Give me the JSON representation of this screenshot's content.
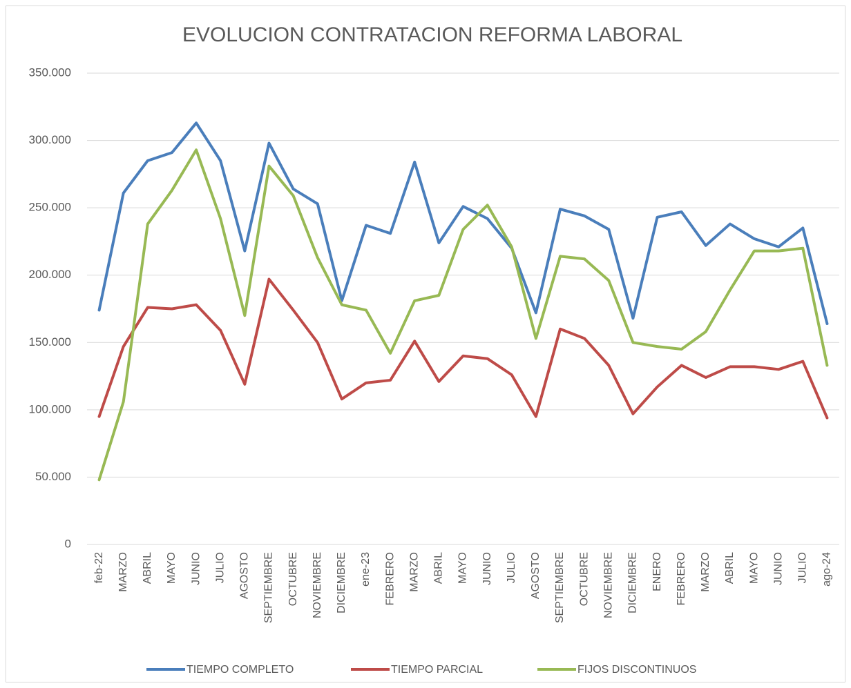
{
  "chart_data": {
    "type": "line",
    "title": "EVOLUCION CONTRATACION REFORMA LABORAL",
    "categories": [
      "feb-22",
      "MARZO",
      "ABRIL",
      "MAYO",
      "JUNIO",
      "JULIO",
      "AGOSTO",
      "SEPTIEMBRE",
      "OCTUBRE",
      "NOVIEMBRE",
      "DICIEMBRE",
      "ene-23",
      "FEBRERO",
      "MARZO",
      "ABRIL",
      "MAYO",
      "JUNIO",
      "JULIO",
      "AGOSTO",
      "SEPTIEMBRE",
      "OCTUBRE",
      "NOVIEMBRE",
      "DICIEMBRE",
      "ENERO",
      "FEBRERO",
      "MARZO",
      "ABRIL",
      "MAYO",
      "JUNIO",
      "JULIO",
      "ago-24"
    ],
    "series": [
      {
        "name": "TIEMPO COMPLETO",
        "color": "#4a7ebb",
        "values": [
          174000,
          261000,
          285000,
          291000,
          313000,
          285000,
          218000,
          298000,
          264000,
          253000,
          181000,
          237000,
          231000,
          284000,
          224000,
          251000,
          242000,
          220000,
          172000,
          249000,
          244000,
          234000,
          168000,
          243000,
          247000,
          222000,
          238000,
          227000,
          221000,
          235000,
          164000
        ]
      },
      {
        "name": "TIEMPO PARCIAL",
        "color": "#be4b48",
        "values": [
          95000,
          147000,
          176000,
          175000,
          178000,
          159000,
          119000,
          197000,
          174000,
          150000,
          108000,
          120000,
          122000,
          151000,
          121000,
          140000,
          138000,
          126000,
          95000,
          160000,
          153000,
          133000,
          97000,
          117000,
          133000,
          124000,
          132000,
          132000,
          130000,
          136000,
          94000
        ]
      },
      {
        "name": "FIJOS DISCONTINUOS",
        "color": "#98b954",
        "values": [
          48000,
          106000,
          238000,
          263000,
          293000,
          242000,
          170000,
          281000,
          259000,
          213000,
          178000,
          174000,
          142000,
          181000,
          185000,
          234000,
          252000,
          221000,
          153000,
          214000,
          212000,
          196000,
          150000,
          147000,
          145000,
          158000,
          189000,
          218000,
          218000,
          220000,
          133000
        ]
      }
    ],
    "ylim": [
      0,
      350000
    ],
    "yticks": [
      0,
      {
        "value": 50000,
        "label": "50.000"
      },
      {
        "value": 100000,
        "label": "100.000"
      },
      {
        "value": 150000,
        "label": "150.000"
      },
      {
        "value": 200000,
        "label": "200.000"
      },
      {
        "value": 250000,
        "label": "250.000"
      },
      {
        "value": 300000,
        "label": "300.000"
      },
      {
        "value": 350000,
        "label": "350.000"
      }
    ],
    "grid": true
  }
}
